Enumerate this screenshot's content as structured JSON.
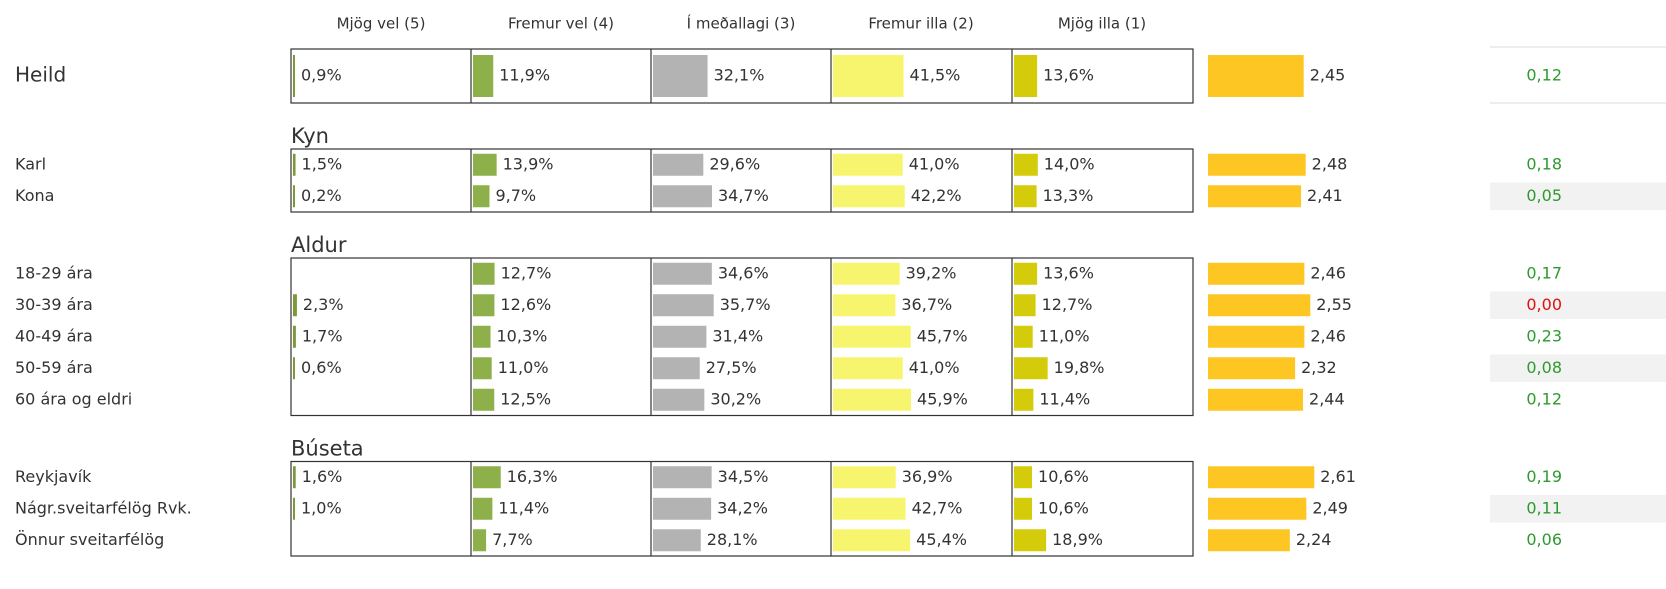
{
  "columns": [
    "Mjög vel (5)",
    "Fremur vel (4)",
    "Í meðallagi (3)",
    "Fremur illa (2)",
    "Mjög illa (1)"
  ],
  "column_colors": [
    "#7a9a3a",
    "#8db04a",
    "#b3b3b3",
    "#f7f56e",
    "#d4cc0a"
  ],
  "mean_color": "#fdc623",
  "sections": [
    {
      "rows": [
        {
          "label": "Heild",
          "values": [
            0.9,
            11.9,
            32.1,
            41.5,
            13.6
          ],
          "value_labels": [
            "0,9%",
            "11,9%",
            "32,1%",
            "41,5%",
            "13,6%"
          ],
          "mean": 2.45,
          "mean_label": "2,45",
          "diff": 0.12,
          "diff_label": "0,12",
          "diff_color": "#2e9a2e"
        }
      ]
    },
    {
      "title": "Kyn",
      "rows": [
        {
          "label": "Karl",
          "values": [
            1.5,
            13.9,
            29.6,
            41.0,
            14.0
          ],
          "value_labels": [
            "1,5%",
            "13,9%",
            "29,6%",
            "41,0%",
            "14,0%"
          ],
          "mean": 2.48,
          "mean_label": "2,48",
          "diff": 0.18,
          "diff_label": "0,18",
          "diff_color": "#2e9a2e"
        },
        {
          "label": "Kona",
          "values": [
            0.2,
            9.7,
            34.7,
            42.2,
            13.3
          ],
          "value_labels": [
            "0,2%",
            "9,7%",
            "34,7%",
            "42,2%",
            "13,3%"
          ],
          "mean": 2.41,
          "mean_label": "2,41",
          "diff": 0.05,
          "diff_label": "0,05",
          "diff_color": "#2e9a2e"
        }
      ]
    },
    {
      "title": "Aldur",
      "rows": [
        {
          "label": "18-29 ára",
          "values": [
            null,
            12.7,
            34.6,
            39.2,
            13.6
          ],
          "value_labels": [
            null,
            "12,7%",
            "34,6%",
            "39,2%",
            "13,6%"
          ],
          "mean": 2.46,
          "mean_label": "2,46",
          "diff": 0.17,
          "diff_label": "0,17",
          "diff_color": "#2e9a2e"
        },
        {
          "label": "30-39 ára",
          "values": [
            2.3,
            12.6,
            35.7,
            36.7,
            12.7
          ],
          "value_labels": [
            "2,3%",
            "12,6%",
            "35,7%",
            "36,7%",
            "12,7%"
          ],
          "mean": 2.55,
          "mean_label": "2,55",
          "diff": 0.0,
          "diff_label": "0,00",
          "diff_color": "#e01010"
        },
        {
          "label": "40-49 ára",
          "values": [
            1.7,
            10.3,
            31.4,
            45.7,
            11.0
          ],
          "value_labels": [
            "1,7%",
            "10,3%",
            "31,4%",
            "45,7%",
            "11,0%"
          ],
          "mean": 2.46,
          "mean_label": "2,46",
          "diff": 0.23,
          "diff_label": "0,23",
          "diff_color": "#2e9a2e"
        },
        {
          "label": "50-59 ára",
          "values": [
            0.6,
            11.0,
            27.5,
            41.0,
            19.8
          ],
          "value_labels": [
            "0,6%",
            "11,0%",
            "27,5%",
            "41,0%",
            "19,8%"
          ],
          "mean": 2.32,
          "mean_label": "2,32",
          "diff": 0.08,
          "diff_label": "0,08",
          "diff_color": "#2e9a2e"
        },
        {
          "label": "60 ára og eldri",
          "values": [
            null,
            12.5,
            30.2,
            45.9,
            11.4
          ],
          "value_labels": [
            null,
            "12,5%",
            "30,2%",
            "45,9%",
            "11,4%"
          ],
          "mean": 2.44,
          "mean_label": "2,44",
          "diff": 0.12,
          "diff_label": "0,12",
          "diff_color": "#2e9a2e"
        }
      ]
    },
    {
      "title": "Búseta",
      "rows": [
        {
          "label": "Reykjavík",
          "values": [
            1.6,
            16.3,
            34.5,
            36.9,
            10.6
          ],
          "value_labels": [
            "1,6%",
            "16,3%",
            "34,5%",
            "36,9%",
            "10,6%"
          ],
          "mean": 2.61,
          "mean_label": "2,61",
          "diff": 0.19,
          "diff_label": "0,19",
          "diff_color": "#2e9a2e"
        },
        {
          "label": "Nágr.sveitarfélög Rvk.",
          "values": [
            1.0,
            11.4,
            34.2,
            42.7,
            10.6
          ],
          "value_labels": [
            "1,0%",
            "11,4%",
            "34,2%",
            "42,7%",
            "10,6%"
          ],
          "mean": 2.49,
          "mean_label": "2,49",
          "diff": 0.11,
          "diff_label": "0,11",
          "diff_color": "#2e9a2e"
        },
        {
          "label": "Önnur sveitarfélög",
          "values": [
            null,
            7.7,
            28.1,
            45.4,
            18.9
          ],
          "value_labels": [
            null,
            "7,7%",
            "28,1%",
            "45,4%",
            "18,9%"
          ],
          "mean": 2.24,
          "mean_label": "2,24",
          "diff": 0.06,
          "diff_label": "0,06",
          "diff_color": "#2e9a2e"
        }
      ]
    }
  ]
}
